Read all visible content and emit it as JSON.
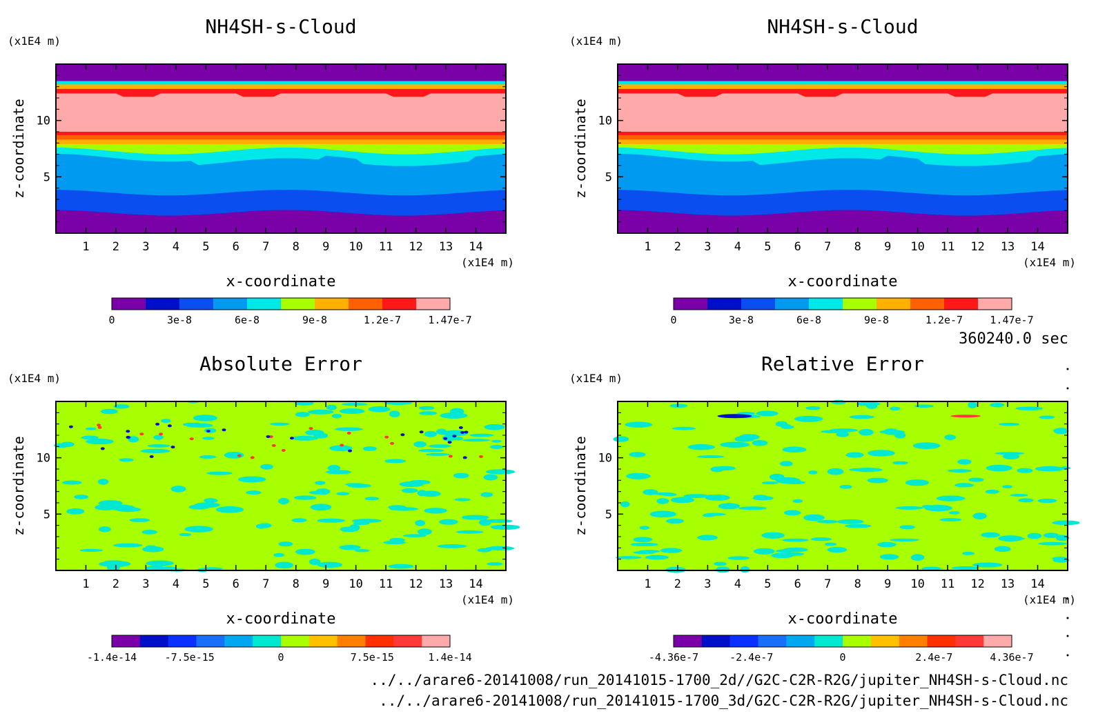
{
  "time_label": "360240.0 sec",
  "file_paths": [
    "../../arare6-20141008/run_20141015-1700_2d//G2C-C2R-R2G/jupiter_NH4SH-s-Cloud.nc",
    "../../arare6-20141008/run_20141015-1700_3d/G2C-C2R-R2G/jupiter_NH4SH-s-Cloud.nc"
  ],
  "colors": {
    "cloud_levels": [
      "#7a00a8",
      "#0010c8",
      "#0a4ef0",
      "#009af0",
      "#00e8e8",
      "#a8ff00",
      "#ffb000",
      "#ff6000",
      "#ff1818",
      "#ffaaaa"
    ],
    "error_levels": [
      "#7a00a8",
      "#0010c8",
      "#0a30ff",
      "#1870f8",
      "#00a8f0",
      "#00e8d0",
      "#a8ff00",
      "#ffc000",
      "#ff8000",
      "#ff3000",
      "#ff3838",
      "#ffaaaa"
    ]
  },
  "chart_data": [
    {
      "type": "heatmap",
      "title": "NH4SH-s-Cloud",
      "xlabel": "x-coordinate",
      "ylabel": "z-coordinate",
      "x_unit": "(x1E4 m)",
      "y_unit": "(x1E4 m)",
      "xlim": [
        0,
        15
      ],
      "ylim": [
        0,
        15
      ],
      "x_ticks": [
        1,
        2,
        3,
        4,
        5,
        6,
        7,
        8,
        9,
        10,
        11,
        12,
        13,
        14
      ],
      "y_ticks": [
        5,
        10
      ],
      "colorbar_ticks": [
        "0",
        "3e-8",
        "6e-8",
        "9e-8",
        "1.2e-7",
        "1.47e-7"
      ],
      "colorbar_range": [
        0,
        1.47e-07
      ]
    },
    {
      "type": "heatmap",
      "title": "NH4SH-s-Cloud",
      "xlabel": "x-coordinate",
      "ylabel": "z-coordinate",
      "x_unit": "(x1E4 m)",
      "y_unit": "(x1E4 m)",
      "xlim": [
        0,
        15
      ],
      "ylim": [
        0,
        15
      ],
      "x_ticks": [
        1,
        2,
        3,
        4,
        5,
        6,
        7,
        8,
        9,
        10,
        11,
        12,
        13,
        14
      ],
      "y_ticks": [
        5,
        10
      ],
      "colorbar_ticks": [
        "0",
        "3e-8",
        "6e-8",
        "9e-8",
        "1.2e-7",
        "1.47e-7"
      ],
      "colorbar_range": [
        0,
        1.47e-07
      ]
    },
    {
      "type": "heatmap",
      "title": "Absolute Error",
      "xlabel": "x-coordinate",
      "ylabel": "z-coordinate",
      "x_unit": "(x1E4 m)",
      "y_unit": "(x1E4 m)",
      "xlim": [
        0,
        15
      ],
      "ylim": [
        0,
        15
      ],
      "x_ticks": [
        1,
        2,
        3,
        4,
        5,
        6,
        7,
        8,
        9,
        10,
        11,
        12,
        13,
        14
      ],
      "y_ticks": [
        5,
        10
      ],
      "colorbar_ticks": [
        "-1.4e-14",
        "-7.5e-15",
        "0",
        "7.5e-15",
        "1.4e-14"
      ],
      "colorbar_range": [
        -1.4e-14,
        1.4e-14
      ]
    },
    {
      "type": "heatmap",
      "title": "Relative Error",
      "xlabel": "x-coordinate",
      "ylabel": "z-coordinate",
      "x_unit": "(x1E4 m)",
      "y_unit": "(x1E4 m)",
      "xlim": [
        0,
        15
      ],
      "ylim": [
        0,
        15
      ],
      "x_ticks": [
        1,
        2,
        3,
        4,
        5,
        6,
        7,
        8,
        9,
        10,
        11,
        12,
        13,
        14
      ],
      "y_ticks": [
        5,
        10
      ],
      "colorbar_ticks": [
        "-4.36e-7",
        "-2.4e-7",
        "0",
        "2.4e-7",
        "4.36e-7"
      ],
      "colorbar_range": [
        -4.36e-07,
        4.36e-07
      ]
    }
  ]
}
